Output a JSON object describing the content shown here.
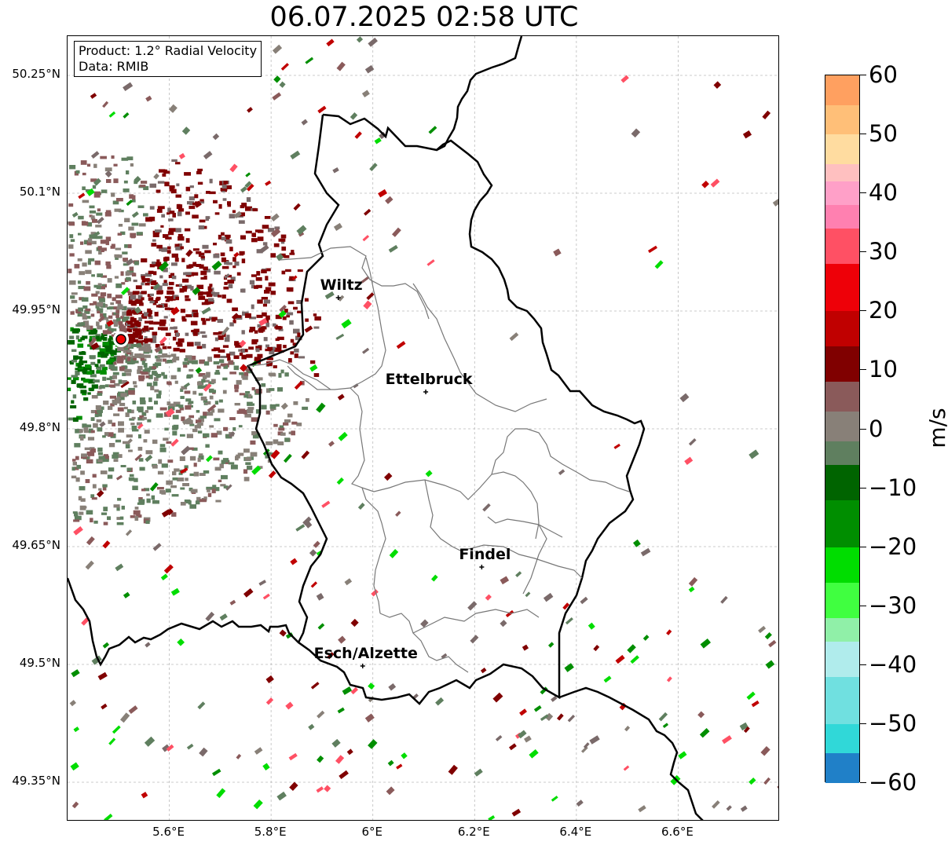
{
  "title": "06.07.2025 02:58 UTC",
  "info": {
    "product": "Product: 1.2° Radial Velocity",
    "data": "Data: RMIB"
  },
  "map": {
    "lon_range": [
      5.4,
      6.8
    ],
    "lat_range": [
      49.3,
      50.3
    ],
    "lat_ticks": [
      {
        "value": 50.25,
        "label": "50.25°N"
      },
      {
        "value": 50.1,
        "label": "50.1°N"
      },
      {
        "value": 49.95,
        "label": "49.95°N"
      },
      {
        "value": 49.8,
        "label": "49.8°N"
      },
      {
        "value": 49.65,
        "label": "49.65°N"
      },
      {
        "value": 49.5,
        "label": "49.5°N"
      },
      {
        "value": 49.35,
        "label": "49.35°N"
      }
    ],
    "lon_ticks": [
      {
        "value": 5.6,
        "label": "5.6°E"
      },
      {
        "value": 5.8,
        "label": "5.8°E"
      },
      {
        "value": 6.0,
        "label": "6°E"
      },
      {
        "value": 6.2,
        "label": "6.2°E"
      },
      {
        "value": 6.4,
        "label": "6.4°E"
      },
      {
        "value": 6.6,
        "label": "6.6°E"
      }
    ],
    "grid": true,
    "radar_site": {
      "lon": 5.505,
      "lat": 49.914
    },
    "cities": [
      {
        "name": "Wiltz",
        "lon": 5.932,
        "lat": 49.967
      },
      {
        "name": "Ettelbruck",
        "lon": 6.104,
        "lat": 49.847
      },
      {
        "name": "Findel",
        "lon": 6.214,
        "lat": 49.624
      },
      {
        "name": "Esch/Alzette",
        "lon": 5.98,
        "lat": 49.498
      }
    ]
  },
  "colorbar": {
    "unit": "m/s",
    "min": -60,
    "max": 60,
    "tick_values": [
      60,
      50,
      40,
      30,
      20,
      10,
      0,
      -10,
      -20,
      -30,
      -40,
      -50,
      -60
    ],
    "tick_labels": [
      "60",
      "50",
      "40",
      "30",
      "20",
      "10",
      "0",
      "−10",
      "−20",
      "−30",
      "−40",
      "−50",
      "−60"
    ],
    "bands": [
      {
        "from": 55,
        "to": 60,
        "color": "#ffa060"
      },
      {
        "from": 50,
        "to": 55,
        "color": "#ffbf78"
      },
      {
        "from": 45,
        "to": 50,
        "color": "#ffdca0"
      },
      {
        "from": 42,
        "to": 45,
        "color": "#ffc0c0"
      },
      {
        "from": 38,
        "to": 42,
        "color": "#ffa0c8"
      },
      {
        "from": 34,
        "to": 38,
        "color": "#ff80b0"
      },
      {
        "from": 28,
        "to": 34,
        "color": "#ff5064"
      },
      {
        "from": 20,
        "to": 28,
        "color": "#ee0008"
      },
      {
        "from": 14,
        "to": 20,
        "color": "#c00000"
      },
      {
        "from": 8,
        "to": 14,
        "color": "#800000"
      },
      {
        "from": 3,
        "to": 8,
        "color": "#8a5a5a"
      },
      {
        "from": -2,
        "to": 3,
        "color": "#888078"
      },
      {
        "from": -6,
        "to": -2,
        "color": "#5f7f5f"
      },
      {
        "from": -12,
        "to": -6,
        "color": "#006400"
      },
      {
        "from": -20,
        "to": -12,
        "color": "#008e00"
      },
      {
        "from": -26,
        "to": -20,
        "color": "#00dd00"
      },
      {
        "from": -32,
        "to": -26,
        "color": "#40ff40"
      },
      {
        "from": -36,
        "to": -32,
        "color": "#90f0a8"
      },
      {
        "from": -42,
        "to": -36,
        "color": "#b0ecec"
      },
      {
        "from": -50,
        "to": -42,
        "color": "#70e0e0"
      },
      {
        "from": -55,
        "to": -50,
        "color": "#30d8d8"
      },
      {
        "from": -60,
        "to": -55,
        "color": "#2080c8"
      }
    ]
  }
}
